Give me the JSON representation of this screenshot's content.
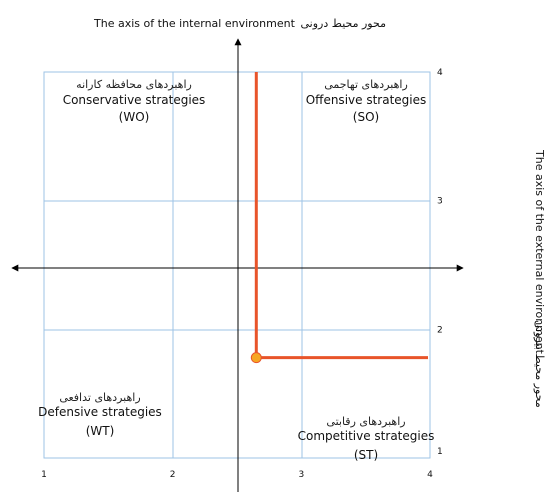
{
  "title": "The axis of the internal environment",
  "title_fa": "محور محیط درونی",
  "right_title": "The axis of the external environment",
  "right_title_fa": "محور محیط بیرونی",
  "quadrants": {
    "wo": {
      "fa": "راهبردهای محافظه کارانه",
      "en": "Conservative strategies",
      "code": "(WO)"
    },
    "so": {
      "fa": "راهبردهای تهاجمی",
      "en": "Offensive strategies",
      "code": "(SO)"
    },
    "wt": {
      "fa": "راهبردهای تدافعی",
      "en": "Defensive strategies",
      "code": "(WT)"
    },
    "st": {
      "fa": "راهبردهای رقابتی",
      "en": "Competitive strategies",
      "code": "(ST)"
    }
  },
  "x_ticks": [
    "1",
    "2",
    "3",
    "4"
  ],
  "y_ticks": [
    "1",
    "2",
    "3",
    "4"
  ],
  "point": {
    "x": 2.65,
    "y": 1.78
  },
  "colors": {
    "grid": "#9ec3e6",
    "marker": "#e8542a",
    "dot": "#f6a623",
    "axis": "#000000"
  }
}
